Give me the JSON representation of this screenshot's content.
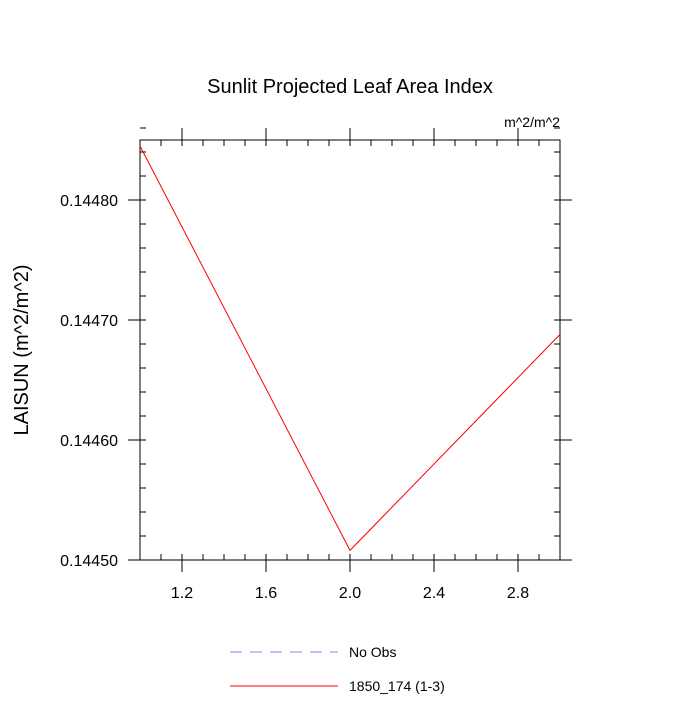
{
  "chart_data": {
    "type": "line",
    "title": "Sunlit Projected Leaf Area Index",
    "units_label": "m^2/m^2",
    "xlabel": "",
    "ylabel": "LAISUN  (m^2/m^2)",
    "xlim": [
      1.0,
      3.0
    ],
    "ylim": [
      0.1445,
      0.14485
    ],
    "x_ticks": [
      1.2,
      1.6,
      2.0,
      2.4,
      2.8
    ],
    "x_tick_labels": [
      "1.2",
      "1.6",
      "2.0",
      "2.4",
      "2.8"
    ],
    "y_ticks": [
      0.1445,
      0.1446,
      0.1447,
      0.1448
    ],
    "y_tick_labels": [
      "0.14450",
      "0.14460",
      "0.14470",
      "0.14480"
    ],
    "grid": false,
    "legend_position": "bottom",
    "series": [
      {
        "name": "1850_174 (1-3)",
        "color": "#ff0000",
        "dash": "solid",
        "x": [
          1.0,
          2.0,
          3.0
        ],
        "y": [
          0.144845,
          0.144508,
          0.144688
        ]
      }
    ],
    "legend": [
      {
        "label": "No Obs",
        "color": "#8080ff",
        "dash": "dashed"
      },
      {
        "label": "1850_174 (1-3)",
        "color": "#ff0000",
        "dash": "solid"
      }
    ]
  }
}
